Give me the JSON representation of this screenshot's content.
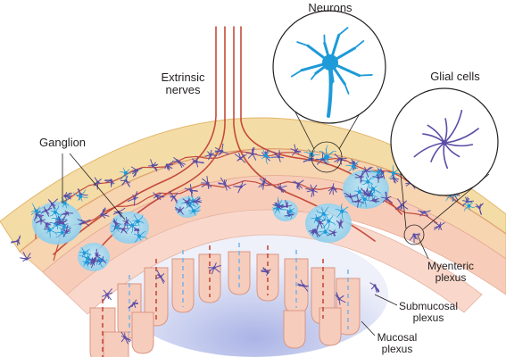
{
  "labels": {
    "neurons": "Neurons",
    "glial_cells": "Glial cells",
    "extrinsic_line1": "Extrinsic",
    "extrinsic_line2": "nerves",
    "ganglion": "Ganglion",
    "myenteric_line1": "Myenteric",
    "myenteric_line2": "plexus",
    "submucosal_line1": "Submucosal",
    "submucosal_line2": "plexus",
    "mucosal_line1": "Mucosal",
    "mucosal_line2": "plexus"
  },
  "colors": {
    "outer_layer": "#f3dba2",
    "muscle_layer": "#f5cdb8",
    "mucosa": "#f4d2c4",
    "lumen": "#cdd3ee",
    "nerve": "#c64a3c",
    "neuron": "#1e9ad8",
    "glia": "#5b4ea6",
    "ganglion": "#8fd0ee"
  }
}
